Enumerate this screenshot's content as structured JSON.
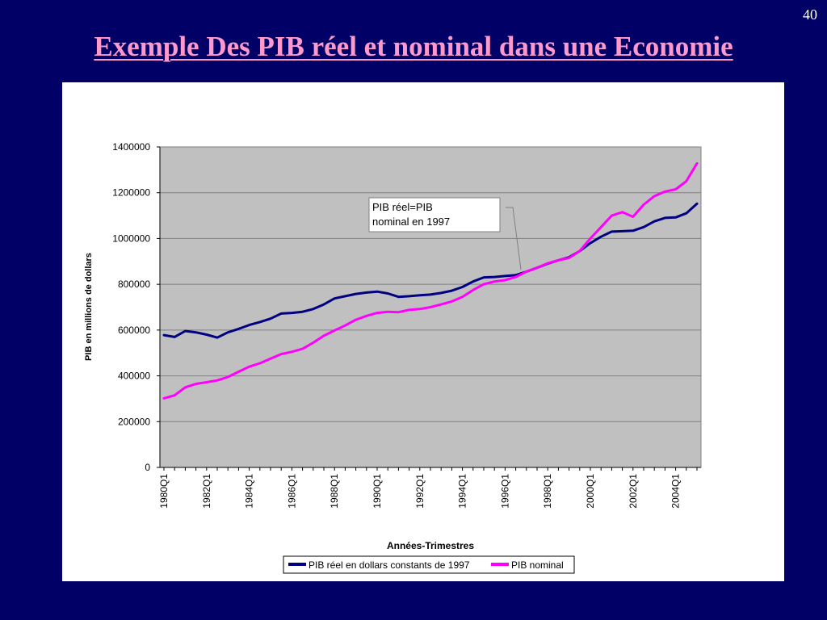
{
  "slide": {
    "number": "40",
    "title": "Exemple Des PIB réel et nominal dans une Economie"
  },
  "colors": {
    "background": "#000066",
    "title": "#ff99cc",
    "plot_area": "#c0c0c0",
    "real": "#000080",
    "nominal": "#ff00ff"
  },
  "chart_data": {
    "type": "line",
    "title": "",
    "xlabel": "Années-Trimestres",
    "ylabel": "PIB en millions de dollars",
    "ylim": [
      0,
      1400000
    ],
    "yticks": [
      "1400000",
      "1200000",
      "1000000",
      "800000",
      "600000",
      "400000",
      "200000",
      "0"
    ],
    "xticks": [
      "1980Q1",
      "1982Q1",
      "1984Q1",
      "1986Q1",
      "1988Q1",
      "1990Q1",
      "1992Q1",
      "1994Q1",
      "1996Q1",
      "1998Q1",
      "2000Q1",
      "2002Q1",
      "2004Q1"
    ],
    "grid": true,
    "legend_position": "bottom",
    "annotation": {
      "line1": "PIB réel=PIB",
      "line2": "nominal en 1997"
    },
    "x": [
      "1980Q1",
      "1980Q3",
      "1981Q1",
      "1981Q3",
      "1982Q1",
      "1982Q3",
      "1983Q1",
      "1983Q3",
      "1984Q1",
      "1984Q3",
      "1985Q1",
      "1985Q3",
      "1986Q1",
      "1986Q3",
      "1987Q1",
      "1987Q3",
      "1988Q1",
      "1988Q3",
      "1989Q1",
      "1989Q3",
      "1990Q1",
      "1990Q3",
      "1991Q1",
      "1991Q3",
      "1992Q1",
      "1992Q3",
      "1993Q1",
      "1993Q3",
      "1994Q1",
      "1994Q3",
      "1995Q1",
      "1995Q3",
      "1996Q1",
      "1996Q3",
      "1997Q1",
      "1997Q3",
      "1998Q1",
      "1998Q3",
      "1999Q1",
      "1999Q3",
      "2000Q1",
      "2000Q3",
      "2001Q1",
      "2001Q3",
      "2002Q1",
      "2002Q3",
      "2003Q1",
      "2003Q3",
      "2004Q1",
      "2004Q3",
      "2005Q1"
    ],
    "series": [
      {
        "name": "PIB réel en dollars constants de 1997",
        "color": "#000080",
        "values": [
          578000,
          570000,
          596000,
          590000,
          580000,
          567000,
          590000,
          605000,
          622000,
          635000,
          650000,
          672000,
          675000,
          680000,
          692000,
          712000,
          738000,
          748000,
          758000,
          764000,
          768000,
          760000,
          745000,
          748000,
          752000,
          755000,
          762000,
          772000,
          788000,
          812000,
          830000,
          832000,
          836000,
          840000,
          855000,
          872000,
          890000,
          905000,
          918000,
          945000,
          980000,
          1008000,
          1030000,
          1032000,
          1034000,
          1050000,
          1075000,
          1090000,
          1092000,
          1110000,
          1152000
        ]
      },
      {
        "name": "PIB nominal",
        "color": "#ff00ff",
        "values": [
          302000,
          315000,
          350000,
          365000,
          372000,
          380000,
          395000,
          418000,
          440000,
          455000,
          475000,
          495000,
          505000,
          518000,
          545000,
          575000,
          598000,
          620000,
          645000,
          662000,
          675000,
          680000,
          678000,
          688000,
          692000,
          700000,
          712000,
          725000,
          745000,
          775000,
          800000,
          812000,
          818000,
          832000,
          855000,
          872000,
          892000,
          905000,
          915000,
          945000,
          1000000,
          1050000,
          1100000,
          1115000,
          1095000,
          1148000,
          1185000,
          1205000,
          1215000,
          1250000,
          1328000
        ]
      }
    ]
  }
}
